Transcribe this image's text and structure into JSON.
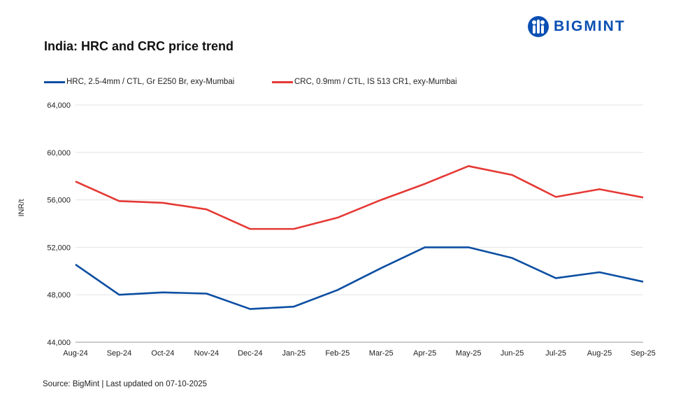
{
  "brand": {
    "name": "BIGMINT",
    "color": "#0b4fb3"
  },
  "source": "Source: BigMint | Last updated on 07-10-2025",
  "chart_data": {
    "type": "line",
    "title": "India: HRC and CRC price trend",
    "xlabel": "",
    "ylabel": "INR/t",
    "ylim": [
      44000,
      64000
    ],
    "yticks": [
      44000,
      48000,
      52000,
      56000,
      60000,
      64000
    ],
    "ytick_labels": [
      "44,000",
      "48,000",
      "52,000",
      "56,000",
      "60,000",
      "64,000"
    ],
    "grid": true,
    "legend_position": "top",
    "categories": [
      "Aug-24",
      "Sep-24",
      "Oct-24",
      "Nov-24",
      "Dec-24",
      "Jan-25",
      "Feb-25",
      "Mar-25",
      "Apr-25",
      "May-25",
      "Jun-25",
      "Jul-25",
      "Aug-25",
      "Sep-25"
    ],
    "series": [
      {
        "name": "HRC, 2.5-4mm / CTL, Gr E250 Br, exy-Mumbai",
        "color": "#0b4ea2",
        "values": [
          50550,
          48000,
          48200,
          48100,
          46800,
          47000,
          48400,
          50250,
          52000,
          52000,
          51100,
          49400,
          49900,
          49100
        ]
      },
      {
        "name": "CRC, 0.9mm / CTL, IS 513 CR1, exy-Mumbai",
        "color": "#e53935",
        "values": [
          57550,
          55900,
          55750,
          55200,
          53550,
          53550,
          54500,
          56000,
          57350,
          58850,
          58100,
          56250,
          56900,
          56200
        ]
      }
    ]
  }
}
